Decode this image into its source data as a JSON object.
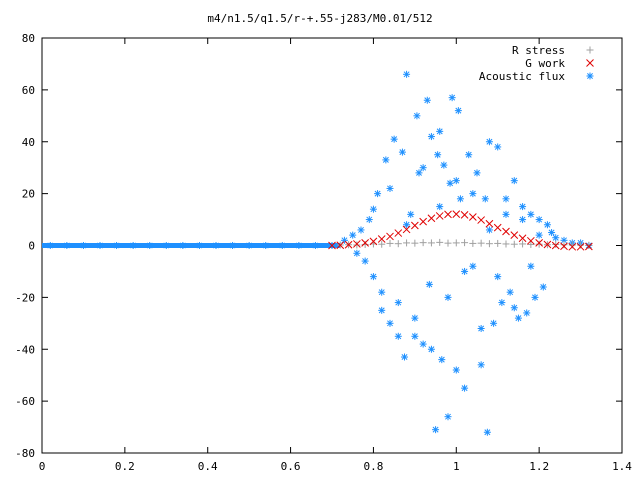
{
  "chart_data": {
    "type": "scatter",
    "title": "m4/n1.5/q1.5/r-+.55-j283/M0.01/512",
    "xlabel": "",
    "ylabel": "",
    "xlim": [
      0,
      1.4
    ],
    "ylim": [
      -80,
      80
    ],
    "x_ticks": [
      0,
      0.2,
      0.4,
      0.6,
      0.8,
      1.0,
      1.2,
      1.4
    ],
    "x_tick_labels": [
      "0",
      "0.2",
      "0.4",
      "0.6",
      "0.8",
      "1",
      "1.2",
      "1.4"
    ],
    "y_ticks": [
      -80,
      -60,
      -40,
      -20,
      0,
      20,
      40,
      60,
      80
    ],
    "y_tick_labels": [
      "-80",
      "-60",
      "-40",
      "-20",
      "0",
      "20",
      "40",
      "60",
      "80"
    ],
    "grid": false,
    "legend_position": "top-right",
    "series": [
      {
        "name": "R stress",
        "marker": "plus",
        "color": "#a0a0a0",
        "x": [
          0.72,
          0.74,
          0.76,
          0.78,
          0.8,
          0.82,
          0.84,
          0.86,
          0.88,
          0.9,
          0.92,
          0.94,
          0.96,
          0.98,
          1.0,
          1.02,
          1.04,
          1.06,
          1.08,
          1.1,
          1.12,
          1.14,
          1.16,
          1.18,
          1.2,
          1.22,
          1.24,
          1.26,
          1.28,
          1.3,
          1.32
        ],
        "y": [
          0.2,
          0.3,
          0.2,
          0.4,
          0.6,
          0.5,
          0.8,
          0.7,
          1.0,
          0.9,
          1.1,
          1.0,
          1.2,
          0.9,
          1.0,
          1.1,
          0.8,
          0.9,
          0.7,
          0.8,
          0.6,
          0.5,
          0.6,
          0.4,
          0.5,
          0.3,
          0.4,
          0.3,
          0.2,
          0.2,
          0.1
        ]
      },
      {
        "name": "G work",
        "marker": "cross",
        "color": "#e00000",
        "x": [
          0.7,
          0.72,
          0.74,
          0.76,
          0.78,
          0.8,
          0.82,
          0.84,
          0.86,
          0.88,
          0.9,
          0.92,
          0.94,
          0.96,
          0.98,
          1.0,
          1.02,
          1.04,
          1.06,
          1.08,
          1.1,
          1.12,
          1.14,
          1.16,
          1.18,
          1.2,
          1.22,
          1.24,
          1.26,
          1.28,
          1.3,
          1.32
        ],
        "y": [
          0.0,
          0.1,
          0.3,
          0.6,
          1.0,
          1.6,
          2.5,
          3.5,
          4.8,
          6.2,
          7.7,
          9.2,
          10.5,
          11.4,
          12.0,
          12.1,
          11.8,
          11.0,
          9.8,
          8.4,
          6.9,
          5.4,
          4.0,
          2.8,
          1.8,
          1.0,
          0.4,
          0.0,
          -0.3,
          -0.5,
          -0.5,
          -0.4
        ]
      },
      {
        "name": "Acoustic flux",
        "marker": "star",
        "color": "#1e90ff",
        "x": [
          0.02,
          0.06,
          0.1,
          0.14,
          0.18,
          0.22,
          0.26,
          0.3,
          0.34,
          0.38,
          0.42,
          0.46,
          0.5,
          0.54,
          0.58,
          0.62,
          0.66,
          0.7,
          0.73,
          0.75,
          0.76,
          0.77,
          0.78,
          0.79,
          0.8,
          0.81,
          0.82,
          0.83,
          0.84,
          0.85,
          0.86,
          0.87,
          0.875,
          0.88,
          0.89,
          0.9,
          0.905,
          0.91,
          0.92,
          0.93,
          0.935,
          0.94,
          0.95,
          0.955,
          0.96,
          0.965,
          0.97,
          0.98,
          0.985,
          0.99,
          1.0,
          1.005,
          1.01,
          1.02,
          1.03,
          1.04,
          1.05,
          1.06,
          1.07,
          1.075,
          1.08,
          1.09,
          1.1,
          1.11,
          1.12,
          1.13,
          1.14,
          1.15,
          1.16,
          1.17,
          1.18,
          1.19,
          1.2,
          1.21,
          1.22,
          1.23,
          1.24,
          1.26,
          1.28,
          1.3,
          1.32,
          0.8,
          0.82,
          0.84,
          0.86,
          0.88,
          0.9,
          0.92,
          0.94,
          0.96,
          0.98,
          1.0,
          1.02,
          1.04,
          1.06,
          1.08,
          1.1,
          1.12,
          1.14,
          1.16,
          1.18,
          1.2
        ],
        "y": [
          0,
          0,
          0,
          0,
          0,
          0,
          0,
          0,
          0,
          0,
          0,
          0,
          0,
          0,
          0,
          0,
          0,
          0,
          2,
          4,
          -3,
          6,
          -6,
          10,
          -12,
          20,
          -25,
          33,
          -30,
          41,
          -22,
          36,
          -43,
          66,
          12,
          -35,
          50,
          28,
          -38,
          56,
          -15,
          42,
          -71,
          35,
          44,
          -44,
          31,
          -66,
          24,
          57,
          -48,
          52,
          18,
          -55,
          35,
          -8,
          28,
          -46,
          18,
          -72,
          40,
          -30,
          38,
          -22,
          12,
          -18,
          25,
          -28,
          15,
          -26,
          12,
          -20,
          10,
          -16,
          8,
          5,
          3,
          2,
          1,
          1,
          0,
          14,
          -18,
          22,
          -35,
          8,
          -28,
          30,
          -40,
          15,
          -20,
          25,
          -10,
          20,
          -32,
          6,
          -12,
          18,
          -24,
          10,
          -8,
          4
        ]
      }
    ]
  }
}
